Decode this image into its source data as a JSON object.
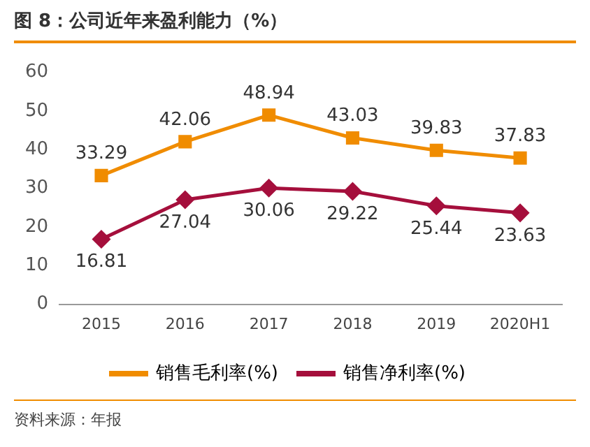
{
  "chart_data": {
    "type": "line",
    "title": "图 8：公司近年来盈利能力（%）",
    "categories": [
      "2015",
      "2016",
      "2017",
      "2018",
      "2019",
      "2020H1"
    ],
    "series": [
      {
        "name": "销售毛利率(%)",
        "color": "#f08c00",
        "values": [
          33.29,
          42.06,
          48.94,
          43.03,
          39.83,
          37.83
        ],
        "marker": "square"
      },
      {
        "name": "销售净利率(%)",
        "color": "#a50f3c",
        "values": [
          16.81,
          27.04,
          30.06,
          29.22,
          25.44,
          23.63
        ],
        "marker": "diamond"
      }
    ],
    "ylim": [
      0,
      60
    ],
    "yticks": [
      0,
      10,
      20,
      30,
      40,
      50,
      60
    ],
    "grid": false,
    "legend": "bottom",
    "data_labels": true,
    "annotations": [
      "资料来源：年报"
    ]
  }
}
